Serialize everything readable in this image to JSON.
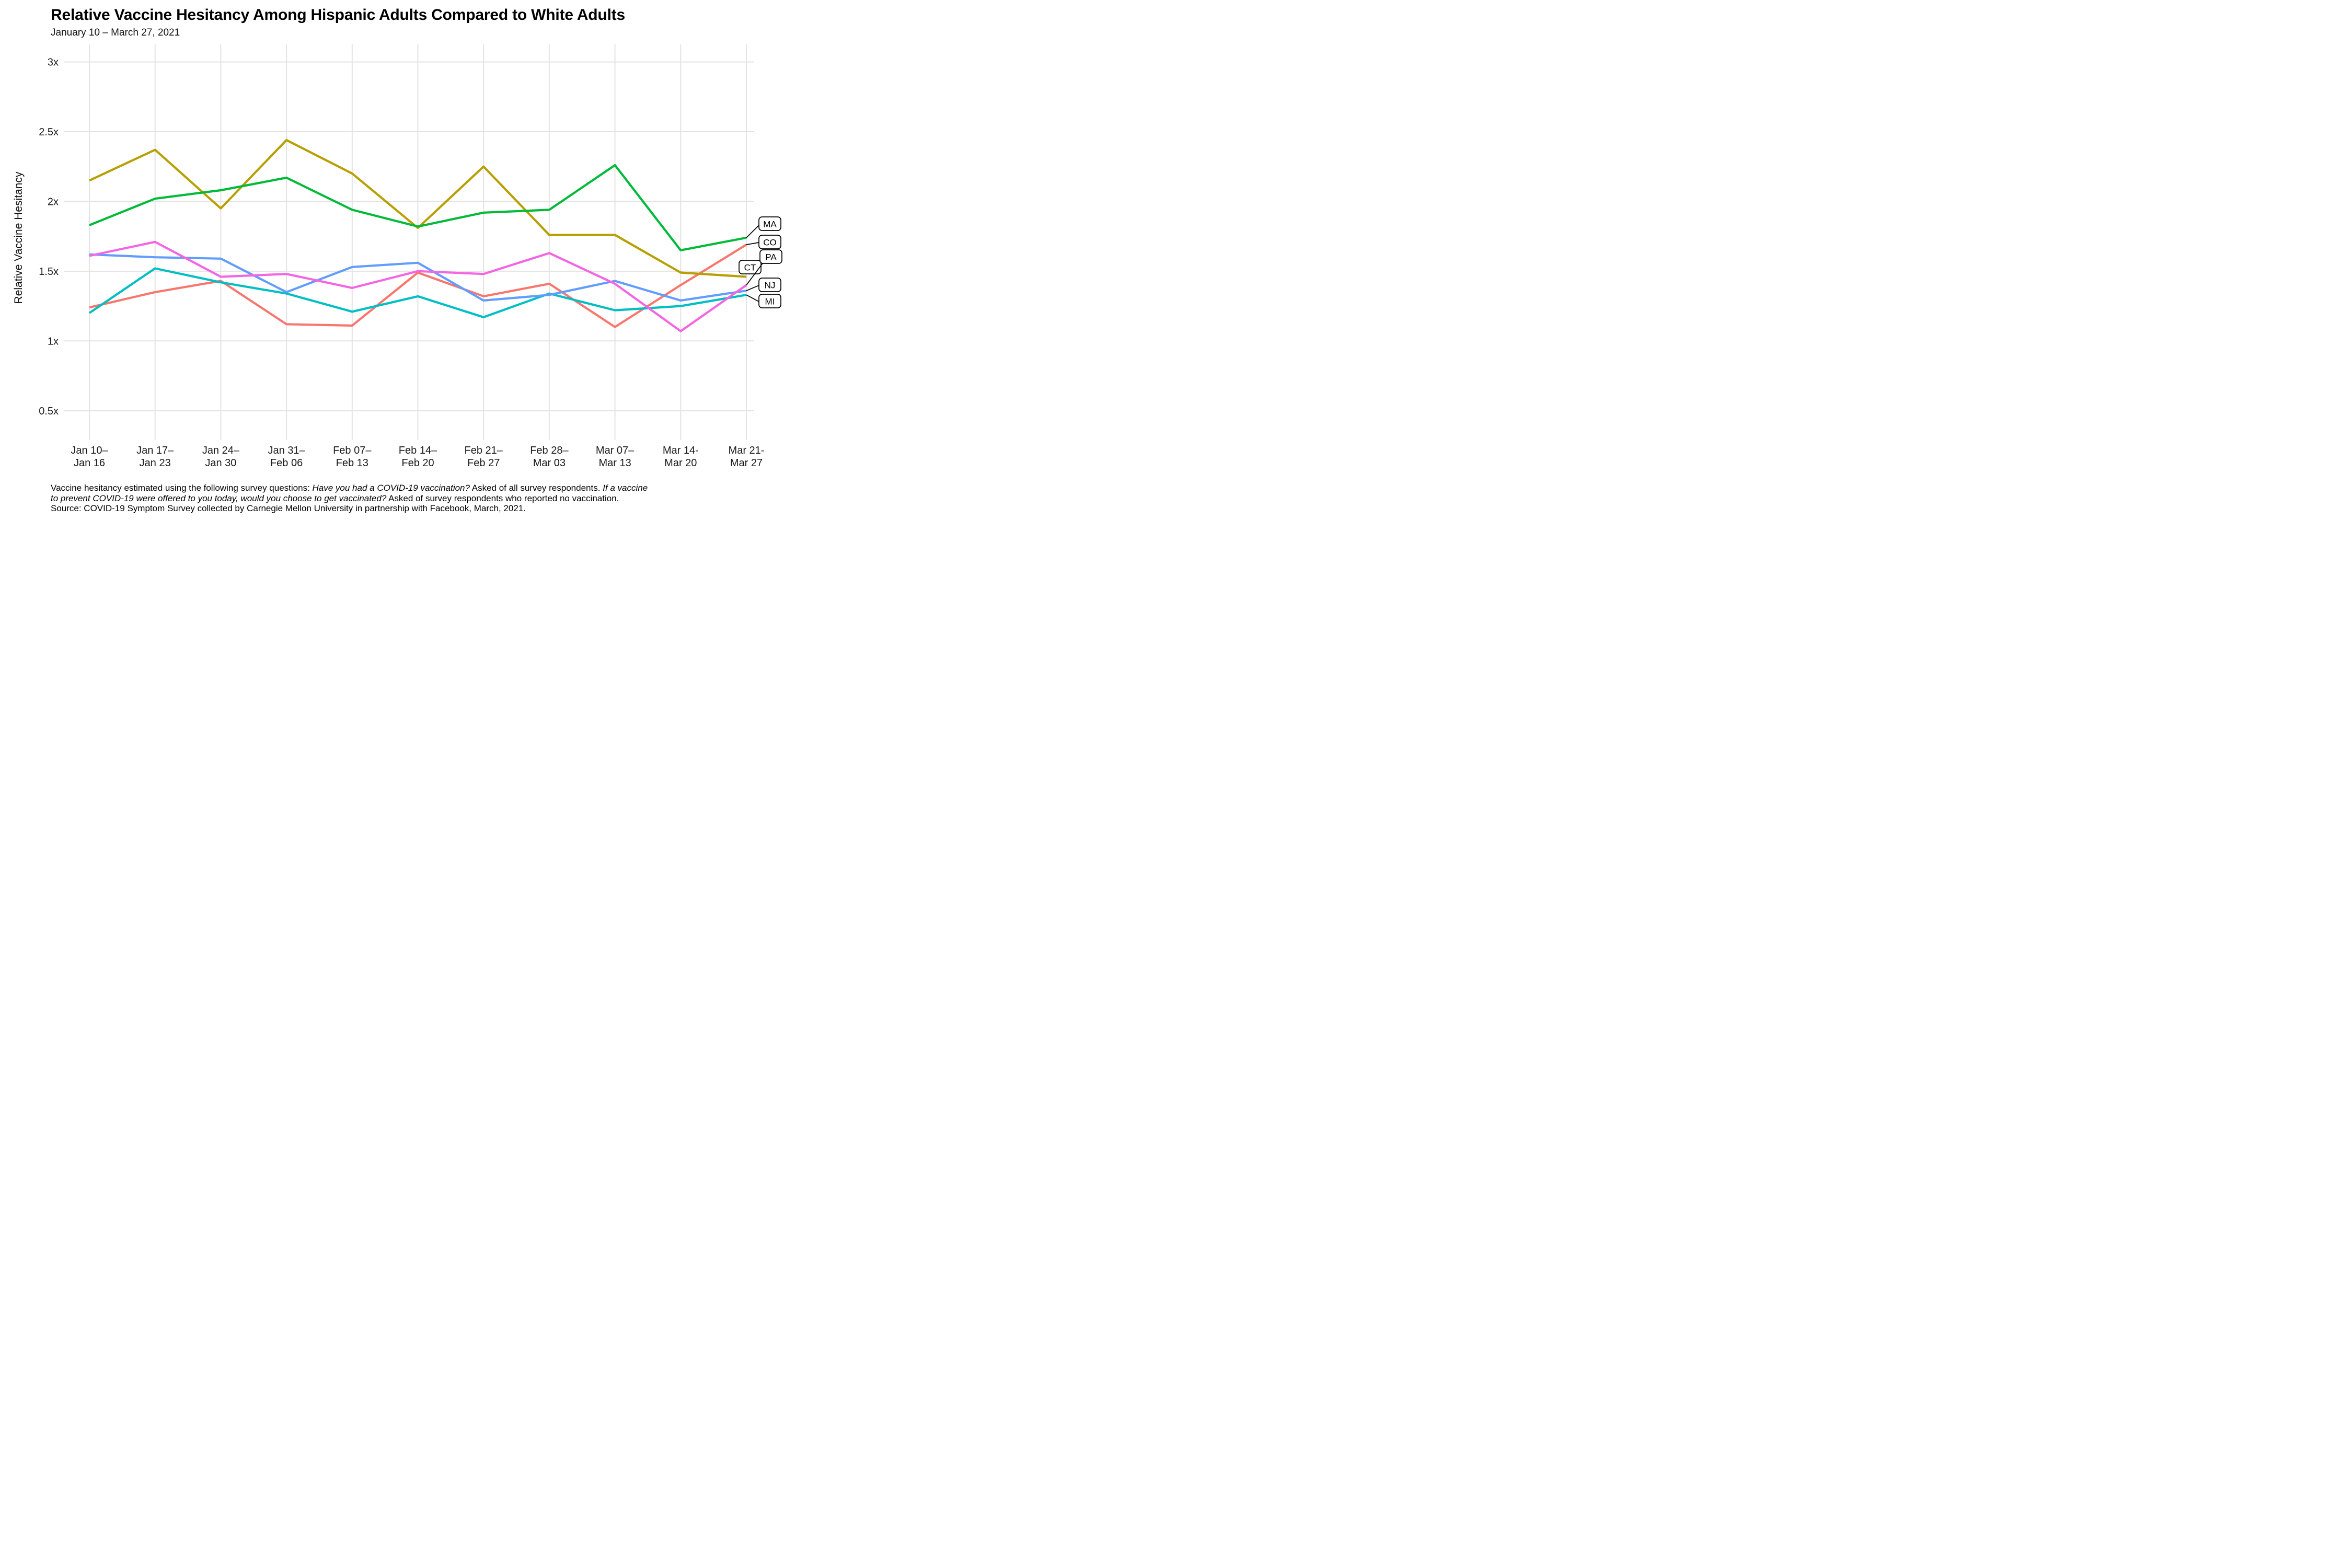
{
  "header": {
    "title": "Relative Vaccine Hesitancy Among Hispanic Adults Compared to White Adults",
    "subtitle": "January 10 – March 27, 2021"
  },
  "y_axis": {
    "title": "Relative Vaccine Hesitancy",
    "tick_labels": [
      "3x",
      "2.5x",
      "2x",
      "1.5x",
      "1x",
      "0.5x"
    ],
    "tick_values": [
      3,
      2.5,
      2,
      1.5,
      1,
      0.5
    ]
  },
  "x_axis": {
    "tick_lines": [
      [
        "Jan 10–",
        "Jan 16"
      ],
      [
        "Jan 17–",
        "Jan 23"
      ],
      [
        "Jan 24–",
        "Jan 30"
      ],
      [
        "Jan 31–",
        "Feb 06"
      ],
      [
        "Feb 07–",
        "Feb 13"
      ],
      [
        "Feb 14–",
        "Feb 20"
      ],
      [
        "Feb 21–",
        "Feb 27"
      ],
      [
        "Feb 28–",
        "Mar 03"
      ],
      [
        "Mar 07–",
        "Mar 13"
      ],
      [
        "Mar 14-",
        "Mar 20"
      ],
      [
        "Mar 21-",
        "Mar 27"
      ]
    ]
  },
  "chart_data": {
    "type": "line",
    "title": "Relative Vaccine Hesitancy Among Hispanic Adults Compared to White Adults",
    "subtitle": "January 10 – March 27, 2021",
    "xlabel": "",
    "ylabel": "Relative Vaccine Hesitancy",
    "ylim": [
      0.5,
      3
    ],
    "grid": true,
    "legend_position": "right-edge-line-labels",
    "categories": [
      "Jan 10–Jan 16",
      "Jan 17–Jan 23",
      "Jan 24–Jan 30",
      "Jan 31–Feb 06",
      "Feb 07–Feb 13",
      "Feb 14–Feb 20",
      "Feb 21–Feb 27",
      "Feb 28–Mar 03",
      "Mar 07–Mar 13",
      "Mar 14-Mar 20",
      "Mar 21-Mar 27"
    ],
    "series": [
      {
        "name": "CO",
        "color": "#F8766D",
        "values": [
          1.24,
          1.35,
          1.43,
          1.12,
          1.11,
          1.49,
          1.32,
          1.41,
          1.1,
          1.4,
          1.69
        ]
      },
      {
        "name": "CT",
        "color": "#B79F00",
        "values": [
          2.15,
          2.37,
          1.95,
          2.44,
          2.2,
          1.81,
          2.25,
          1.76,
          1.76,
          1.49,
          1.46
        ]
      },
      {
        "name": "MA",
        "color": "#00BA38",
        "values": [
          1.83,
          2.02,
          2.08,
          2.17,
          1.94,
          1.82,
          1.92,
          1.94,
          2.26,
          1.65,
          1.74
        ]
      },
      {
        "name": "MI",
        "color": "#00BFC4",
        "values": [
          1.2,
          1.52,
          1.42,
          1.34,
          1.21,
          1.32,
          1.17,
          1.34,
          1.22,
          1.25,
          1.33
        ]
      },
      {
        "name": "NJ",
        "color": "#619CFF",
        "values": [
          1.62,
          1.6,
          1.59,
          1.35,
          1.53,
          1.56,
          1.29,
          1.33,
          1.43,
          1.29,
          1.36
        ]
      },
      {
        "name": "PA",
        "color": "#F564E3",
        "values": [
          1.61,
          1.71,
          1.46,
          1.48,
          1.38,
          1.5,
          1.48,
          1.63,
          1.41,
          1.07,
          1.4
        ]
      }
    ],
    "gridline_color": "#E3E3E3",
    "label_box": {
      "fill": "#FFFFFF",
      "stroke": "#000000"
    }
  },
  "footer": {
    "lines": [
      [
        {
          "text": "Vaccine hesitancy estimated using the following survey questions: ",
          "italic": false
        },
        {
          "text": "Have you had a COVID-19 vaccination?",
          "italic": true
        },
        {
          "text": " Asked of all survey respondents. ",
          "italic": false
        },
        {
          "text": "If a vaccine",
          "italic": true
        }
      ],
      [
        {
          "text": "to prevent COVID-19 were offered to you today, would you choose to get vaccinated?",
          "italic": true
        },
        {
          "text": " Asked of survey respondents who reported no vaccination.",
          "italic": false
        }
      ],
      [
        {
          "text": "Source: COVID-19 Symptom Survey collected by Carnegie Mellon University in partnership with Facebook, March, 2021.",
          "italic": false
        }
      ]
    ]
  }
}
